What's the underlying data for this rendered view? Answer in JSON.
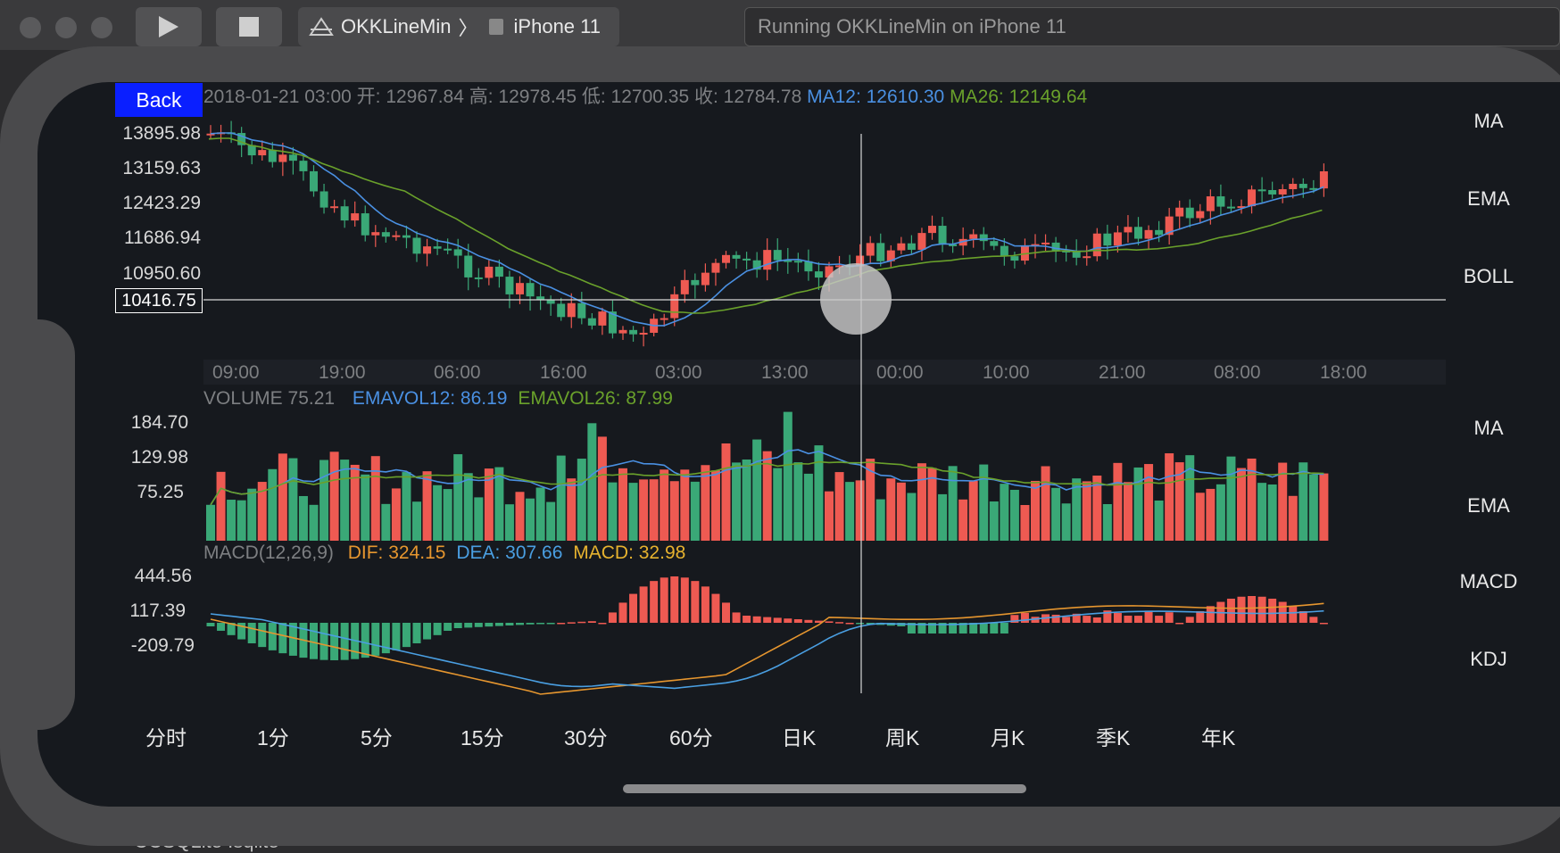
{
  "xcode": {
    "scheme": "OKKLineMin",
    "separator": "〉",
    "device": "iPhone 11",
    "status": "Running OKKLineMin on iPhone 11",
    "bottom_text": "CCSQLite  .sqlite"
  },
  "app": {
    "back_label": "Back",
    "info": {
      "datetime": "2018-01-21 03:00",
      "open": "开: 12967.84",
      "high": "高: 12978.45",
      "low": "低: 12700.35",
      "close": "收: 12784.78",
      "ma12": "MA12: 12610.30",
      "ma26": "MA26: 12149.64"
    },
    "price_axis": [
      "13895.98",
      "13159.63",
      "12423.29",
      "11686.94",
      "10950.60"
    ],
    "cross_price": "10416.75",
    "time_axis": [
      "09:00",
      "19:00",
      "06:00",
      "16:00",
      "03:00",
      "13:00",
      "00:00",
      "10:00",
      "21:00",
      "08:00",
      "18:00"
    ],
    "volume_info": {
      "volume": "VOLUME 75.21",
      "emavol12": "EMAVOL12: 86.19",
      "emavol26": "EMAVOL26: 87.99"
    },
    "volume_axis": [
      "184.70",
      "129.98",
      "75.25"
    ],
    "macd_info": {
      "label": "MACD(12,26,9)",
      "dif": "DIF: 324.15",
      "dea": "DEA: 307.66",
      "macd": "MACD: 32.98"
    },
    "macd_axis": [
      "444.56",
      "117.39",
      "-209.79"
    ],
    "main_indicators": [
      "MA",
      "EMA",
      "BOLL"
    ],
    "volume_indicators": [
      "MA",
      "EMA"
    ],
    "sub_indicators": [
      "MACD",
      "KDJ"
    ],
    "periods": [
      "分时",
      "1分",
      "5分",
      "15分",
      "30分",
      "60分",
      "日K",
      "周K",
      "月K",
      "季K",
      "年K"
    ]
  },
  "colors": {
    "up": "#ee5a52",
    "down": "#3aa877",
    "ma12": "#4a90e2",
    "ma26": "#6aa12b",
    "dif": "#e6962f",
    "dea": "#4a9fe2"
  }
}
